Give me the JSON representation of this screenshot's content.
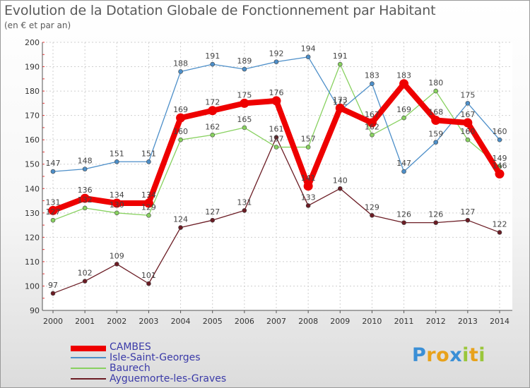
{
  "page": {
    "title": "Evolution de la Dotation Globale de Fonctionnement par Habitant",
    "subtitle": "(en € et par an)",
    "logo_text": "Proxiti"
  },
  "chart_data": {
    "type": "line",
    "title": "Evolution de la Dotation Globale de Fonctionnement par Habitant",
    "subtitle": "(en € et par an)",
    "xlabel": "",
    "ylabel": "",
    "x": [
      "2000",
      "2001",
      "2002",
      "2003",
      "2004",
      "2005",
      "2006",
      "2007",
      "2008",
      "2009",
      "2010",
      "2011",
      "2012",
      "2013",
      "2014"
    ],
    "yticks": [
      90,
      100,
      110,
      120,
      130,
      140,
      150,
      160,
      170,
      180,
      190,
      200
    ],
    "ylim": [
      90,
      200
    ],
    "grid": true,
    "legend_position": "bottom-left",
    "series": [
      {
        "name": "CAMBES",
        "color": "#ee0000",
        "values": [
          131,
          136,
          134,
          134,
          169,
          172,
          175,
          176,
          141,
          173,
          167,
          183,
          168,
          167,
          146
        ]
      },
      {
        "name": "Isle-Saint-Georges",
        "color": "#4d8fc9",
        "values": [
          147,
          148,
          151,
          151,
          188,
          191,
          189,
          192,
          194,
          172,
          183,
          147,
          159,
          175,
          160
        ]
      },
      {
        "name": "Baurech",
        "color": "#88d160",
        "values": [
          127,
          132,
          130,
          129,
          160,
          162,
          165,
          157,
          157,
          191,
          162,
          169,
          180,
          160,
          149
        ]
      },
      {
        "name": "Ayguemorte-les-Graves",
        "color": "#6b1c24",
        "values": [
          97,
          102,
          109,
          101,
          124,
          127,
          131,
          161,
          133,
          140,
          129,
          126,
          126,
          127,
          122
        ]
      }
    ]
  }
}
